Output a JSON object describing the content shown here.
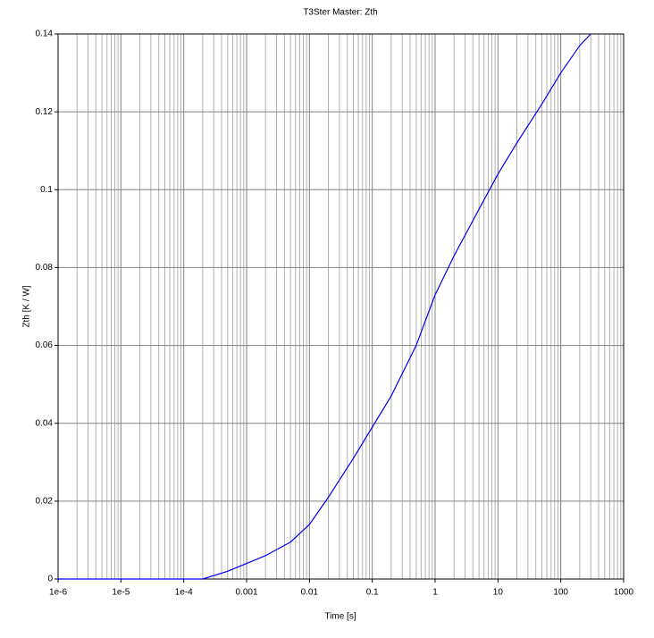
{
  "chart_data": {
    "type": "line",
    "title": "T3Ster Master: Zth",
    "x_label": "Time [s]",
    "y_label": "Zth [K / W]",
    "x": [
      1e-06,
      0.0002,
      0.0005,
      0.001,
      0.002,
      0.005,
      0.01,
      0.02,
      0.05,
      0.1,
      0.2,
      0.5,
      1,
      2,
      5,
      10,
      20,
      50,
      100,
      200,
      300
    ],
    "values": [
      0,
      0,
      0.002,
      0.004,
      0.006,
      0.0095,
      0.014,
      0.021,
      0.031,
      0.039,
      0.047,
      0.06,
      0.073,
      0.083,
      0.095,
      0.104,
      0.112,
      0.122,
      0.13,
      0.137,
      0.14
    ],
    "color": "#0000ee",
    "x_log": true,
    "xlim": [
      1e-06,
      1000
    ],
    "xticks": [
      {
        "value": 1e-06,
        "label": "1e-6"
      },
      {
        "value": 1e-05,
        "label": "1e-5"
      },
      {
        "value": 0.0001,
        "label": "1e-4"
      },
      0.001,
      0.01,
      0.1,
      1,
      10,
      100,
      1000
    ],
    "ylim": [
      0,
      0.14
    ],
    "yticks": [
      0,
      0.02,
      0.04,
      0.06,
      0.08,
      0.1,
      0.12,
      0.14
    ],
    "grid": true,
    "minor_grid": true
  }
}
